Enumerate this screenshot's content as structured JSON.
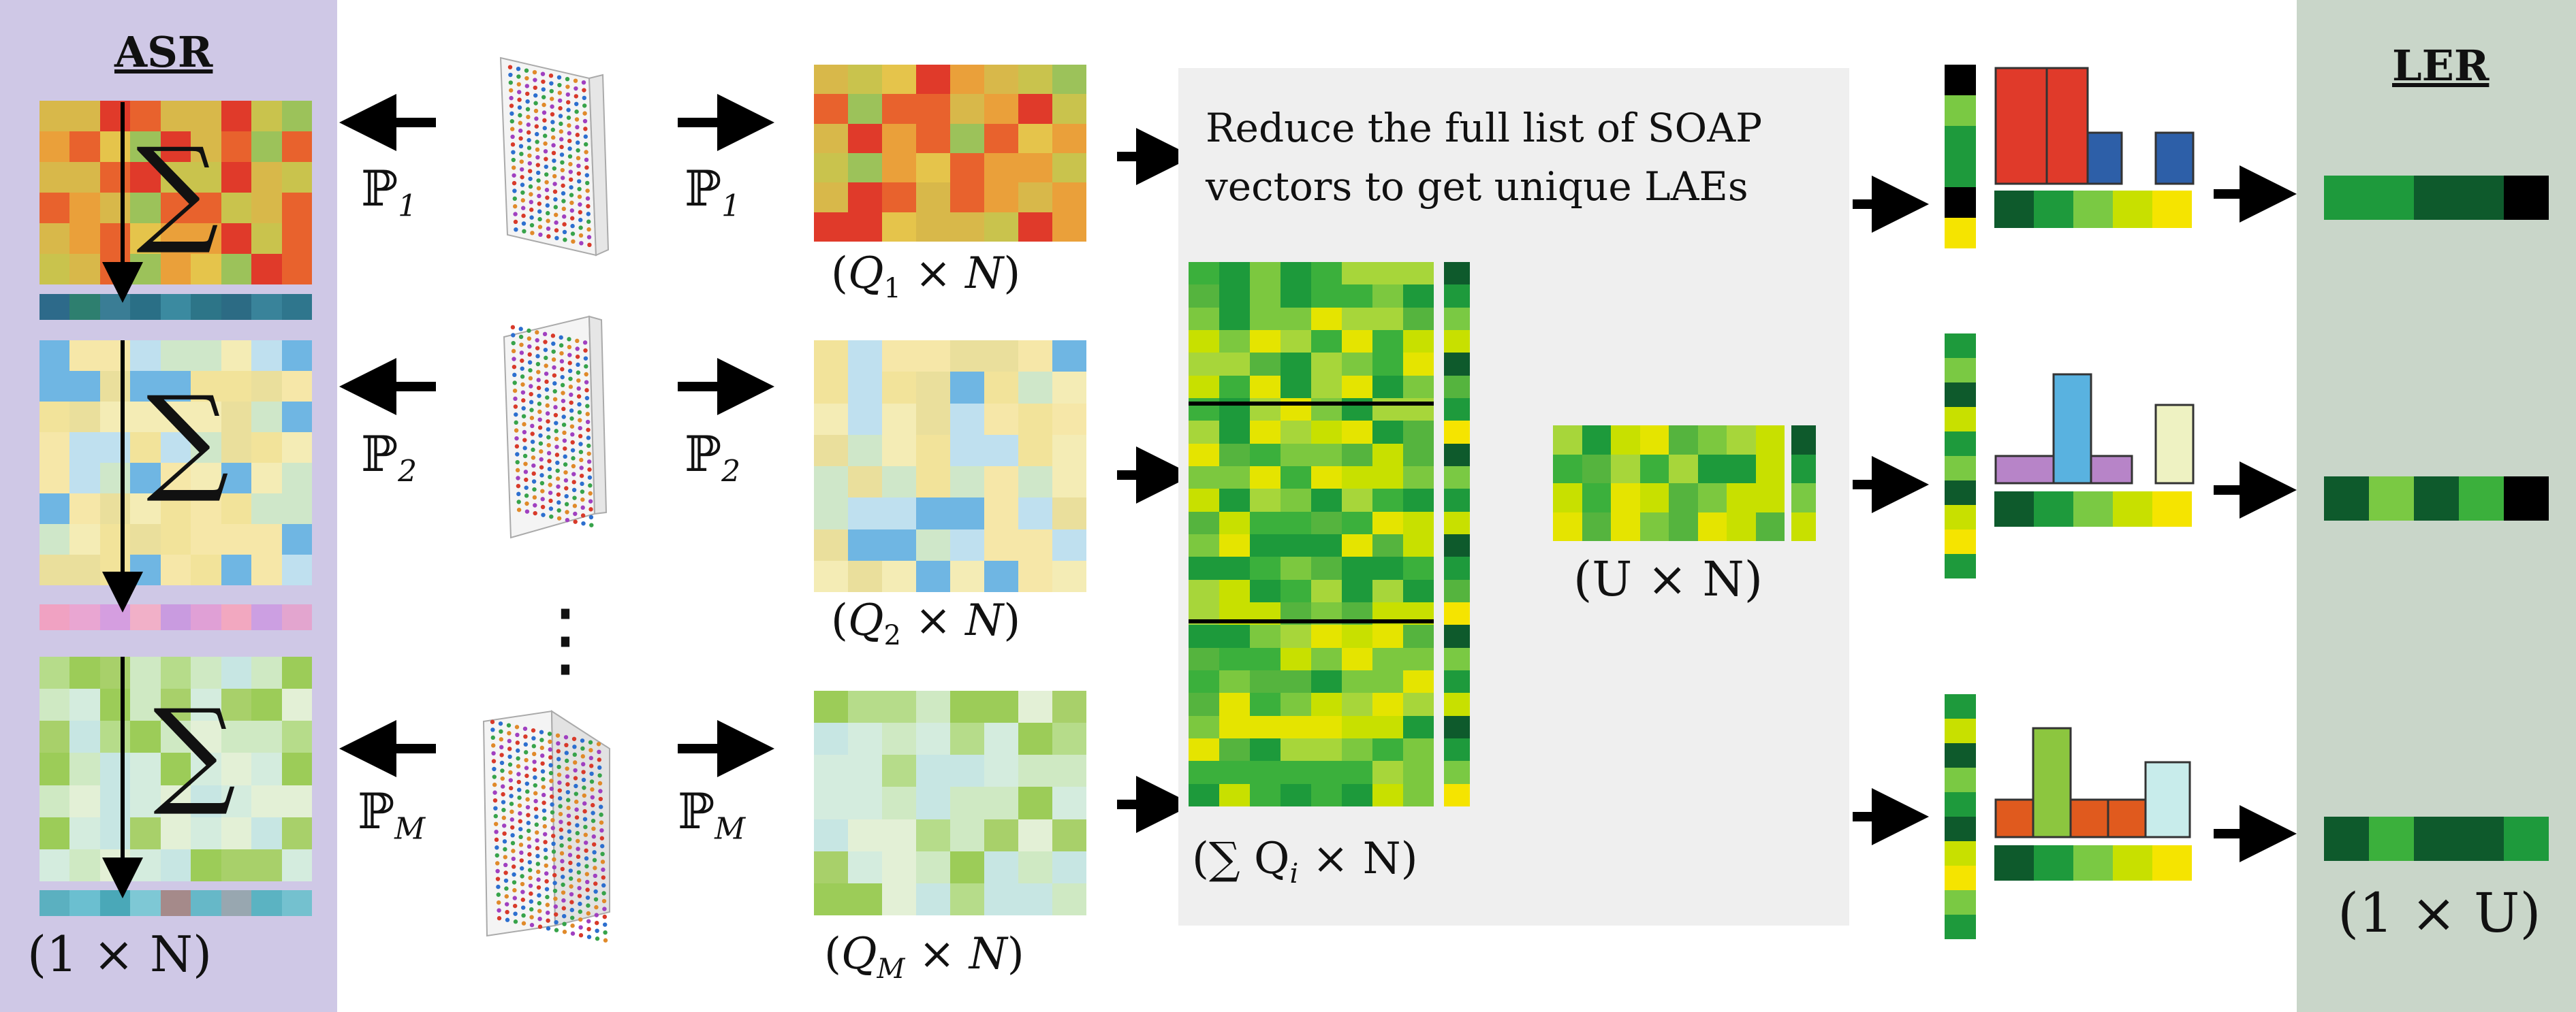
{
  "asr": {
    "title": "ASR",
    "sum_symbol": "∑",
    "dim_label": "(1 × N)"
  },
  "ler": {
    "title": "LER",
    "dim_label": "(1 × U)"
  },
  "projections": [
    {
      "left_label": "ℙ",
      "left_sub": "1",
      "right_label": "ℙ",
      "right_sub": "1",
      "matrix_label": "Q",
      "matrix_sub": "1"
    },
    {
      "left_label": "ℙ",
      "left_sub": "2",
      "right_label": "ℙ",
      "right_sub": "2",
      "matrix_label": "Q",
      "matrix_sub": "2"
    },
    {
      "left_label": "ℙ",
      "left_sub": "M",
      "right_label": "ℙ",
      "right_sub": "M",
      "matrix_label": "Q",
      "matrix_sub": "M"
    }
  ],
  "ellipsis": "⋮",
  "reduce": {
    "line1": "Reduce the full list of SOAP",
    "line2": "vectors to get unique LAEs",
    "stacked_label": "(∑ Q",
    "stacked_sub": "i",
    "stacked_tail": " × N)",
    "unique_label": "(U × N)"
  },
  "colors": {
    "asr_bg": "#cfc8e6",
    "ler_bg": "#c9d6c9",
    "reduce_bg": "#efefef",
    "dark_green": "#0e5a2c",
    "mid_green": "#1e9a3c",
    "light_green": "#7ac943",
    "yellow_green": "#c8e000",
    "yellow": "#f5e400",
    "black": "#000000",
    "red": "#e03a2a",
    "blue": "#2d5fa8",
    "sky": "#59b2e0",
    "violet": "#b784c8",
    "pale_yellow": "#eef2c2",
    "orange": "#e05a1e",
    "lime": "#8cc63f",
    "pale_cyan": "#c8eceb"
  }
}
